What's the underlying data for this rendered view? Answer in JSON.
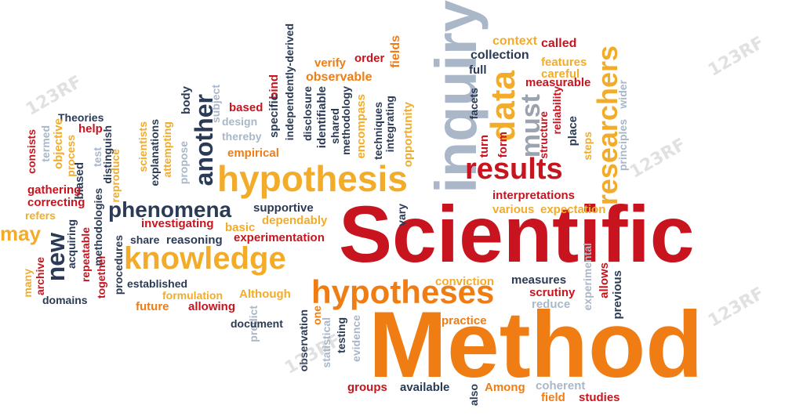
{
  "colors": {
    "red": "#c8141e",
    "orange": "#f07d14",
    "amber": "#f2ac2a",
    "navy": "#2b3a55",
    "gray": "#9aa3ae",
    "lightblue": "#a9b7c8"
  },
  "watermark": "123RF",
  "words": [
    {
      "text": "Scientific",
      "color": "red"
    },
    {
      "text": "Method",
      "color": "orange"
    },
    {
      "text": "inquiry",
      "color": "lightblue"
    },
    {
      "text": "hypothesis",
      "color": "amber"
    },
    {
      "text": "knowledge",
      "color": "amber"
    },
    {
      "text": "hypotheses",
      "color": "orange"
    },
    {
      "text": "results",
      "color": "red"
    },
    {
      "text": "phenomena",
      "color": "navy"
    },
    {
      "text": "researchers",
      "color": "amber"
    },
    {
      "text": "data",
      "color": "amber"
    },
    {
      "text": "another",
      "color": "navy"
    },
    {
      "text": "must",
      "color": "gray"
    },
    {
      "text": "new",
      "color": "navy"
    },
    {
      "text": "may",
      "color": "amber"
    },
    {
      "text": "context",
      "color": "amber"
    },
    {
      "text": "called",
      "color": "red"
    },
    {
      "text": "collection",
      "color": "navy"
    },
    {
      "text": "features",
      "color": "amber"
    },
    {
      "text": "careful",
      "color": "amber"
    },
    {
      "text": "measurable",
      "color": "red"
    },
    {
      "text": "verify",
      "color": "orange"
    },
    {
      "text": "order",
      "color": "red"
    },
    {
      "text": "fields",
      "color": "orange"
    },
    {
      "text": "observable",
      "color": "orange"
    },
    {
      "text": "full",
      "color": "navy"
    },
    {
      "text": "independently-derived",
      "color": "navy"
    },
    {
      "text": "bind",
      "color": "red"
    },
    {
      "text": "based",
      "color": "red"
    },
    {
      "text": "subject",
      "color": "lightblue"
    },
    {
      "text": "design",
      "color": "lightblue"
    },
    {
      "text": "thereby",
      "color": "lightblue"
    },
    {
      "text": "empirical",
      "color": "orange"
    },
    {
      "text": "specific",
      "color": "navy"
    },
    {
      "text": "disclosure",
      "color": "navy"
    },
    {
      "text": "identifiable",
      "color": "navy"
    },
    {
      "text": "shared",
      "color": "navy"
    },
    {
      "text": "methodology",
      "color": "navy"
    },
    {
      "text": "encompass",
      "color": "amber"
    },
    {
      "text": "techniques",
      "color": "navy"
    },
    {
      "text": "integrating",
      "color": "navy"
    },
    {
      "text": "opportunity",
      "color": "amber"
    },
    {
      "text": "facets",
      "color": "navy"
    },
    {
      "text": "turn",
      "color": "red"
    },
    {
      "text": "form",
      "color": "red"
    },
    {
      "text": "structure",
      "color": "red"
    },
    {
      "text": "reliability",
      "color": "red"
    },
    {
      "text": "place",
      "color": "navy"
    },
    {
      "text": "steps",
      "color": "amber"
    },
    {
      "text": "principles",
      "color": "lightblue"
    },
    {
      "text": "wider",
      "color": "lightblue"
    },
    {
      "text": "Theories",
      "color": "navy"
    },
    {
      "text": "help",
      "color": "red"
    },
    {
      "text": "termed",
      "color": "lightblue"
    },
    {
      "text": "objective",
      "color": "amber"
    },
    {
      "text": "process",
      "color": "amber"
    },
    {
      "text": "test",
      "color": "lightblue"
    },
    {
      "text": "distinguish",
      "color": "navy"
    },
    {
      "text": "scientists",
      "color": "amber"
    },
    {
      "text": "explanations",
      "color": "navy"
    },
    {
      "text": "attempting",
      "color": "amber"
    },
    {
      "text": "propose",
      "color": "lightblue"
    },
    {
      "text": "body",
      "color": "navy"
    },
    {
      "text": "consists",
      "color": "red"
    },
    {
      "text": "biased",
      "color": "navy"
    },
    {
      "text": "reproduce",
      "color": "amber"
    },
    {
      "text": "gathering",
      "color": "red"
    },
    {
      "text": "methodologies",
      "color": "navy"
    },
    {
      "text": "correcting",
      "color": "red"
    },
    {
      "text": "refers",
      "color": "amber"
    },
    {
      "text": "acquiring",
      "color": "navy"
    },
    {
      "text": "repeatable",
      "color": "red"
    },
    {
      "text": "many",
      "color": "amber"
    },
    {
      "text": "archive",
      "color": "red"
    },
    {
      "text": "domains",
      "color": "navy"
    },
    {
      "text": "together",
      "color": "red"
    },
    {
      "text": "procedures",
      "color": "navy"
    },
    {
      "text": "investigating",
      "color": "red"
    },
    {
      "text": "supportive",
      "color": "navy"
    },
    {
      "text": "dependably",
      "color": "amber"
    },
    {
      "text": "basic",
      "color": "amber"
    },
    {
      "text": "share",
      "color": "navy"
    },
    {
      "text": "reasoning",
      "color": "navy"
    },
    {
      "text": "experimentation",
      "color": "red"
    },
    {
      "text": "established",
      "color": "navy"
    },
    {
      "text": "formulation",
      "color": "amber"
    },
    {
      "text": "Although",
      "color": "amber"
    },
    {
      "text": "future",
      "color": "orange"
    },
    {
      "text": "allowing",
      "color": "red"
    },
    {
      "text": "predict",
      "color": "lightblue"
    },
    {
      "text": "document",
      "color": "navy"
    },
    {
      "text": "observation",
      "color": "navy"
    },
    {
      "text": "one",
      "color": "orange"
    },
    {
      "text": "statistical",
      "color": "lightblue"
    },
    {
      "text": "testing",
      "color": "navy"
    },
    {
      "text": "evidence",
      "color": "lightblue"
    },
    {
      "text": "interpretations",
      "color": "red"
    },
    {
      "text": "various",
      "color": "amber"
    },
    {
      "text": "expectation",
      "color": "amber"
    },
    {
      "text": "vary",
      "color": "navy"
    },
    {
      "text": "conviction",
      "color": "amber"
    },
    {
      "text": "measures",
      "color": "navy"
    },
    {
      "text": "scrutiny",
      "color": "red"
    },
    {
      "text": "reduce",
      "color": "lightblue"
    },
    {
      "text": "experimental",
      "color": "lightblue"
    },
    {
      "text": "allows",
      "color": "red"
    },
    {
      "text": "previous",
      "color": "navy"
    },
    {
      "text": "practice",
      "color": "orange"
    },
    {
      "text": "groups",
      "color": "red"
    },
    {
      "text": "available",
      "color": "navy"
    },
    {
      "text": "also",
      "color": "navy"
    },
    {
      "text": "Among",
      "color": "orange"
    },
    {
      "text": "coherent",
      "color": "lightblue"
    },
    {
      "text": "field",
      "color": "orange"
    },
    {
      "text": "studies",
      "color": "red"
    }
  ]
}
